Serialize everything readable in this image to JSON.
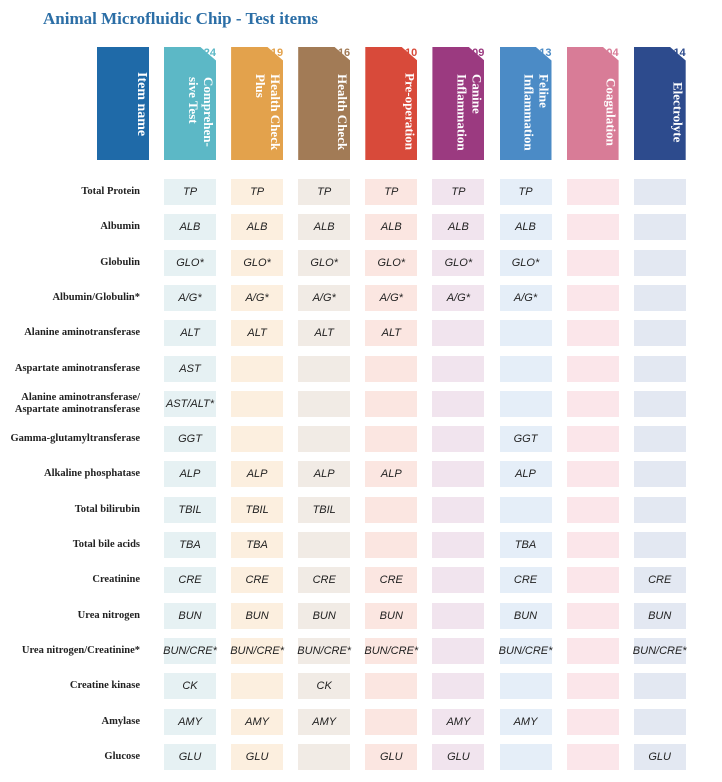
{
  "header": {
    "title": "Animal Microfluidic Chip -  Test items",
    "item_column": "Item name"
  },
  "columns": [
    {
      "number": "24",
      "name": "Comprehen-\nsive Test"
    },
    {
      "number": "19",
      "name": "Health Check\nPlus"
    },
    {
      "number": "16",
      "name": "Health Check"
    },
    {
      "number": "10",
      "name": "Pre-operation"
    },
    {
      "number": "09",
      "name": "Canine\nInflammation"
    },
    {
      "number": "13",
      "name": "Feline\nInflammation"
    },
    {
      "number": "04",
      "name": "Coagulation"
    },
    {
      "number": "14",
      "name": "Electrolyte"
    }
  ],
  "rows": [
    {
      "label": "Total Protein",
      "cells": [
        "TP",
        "TP",
        "TP",
        "TP",
        "TP",
        "TP",
        null,
        null
      ]
    },
    {
      "label": "Albumin",
      "cells": [
        "ALB",
        "ALB",
        "ALB",
        "ALB",
        "ALB",
        "ALB",
        null,
        null
      ]
    },
    {
      "label": "Globulin",
      "cells": [
        "GLO*",
        "GLO*",
        "GLO*",
        "GLO*",
        "GLO*",
        "GLO*",
        null,
        null
      ]
    },
    {
      "label": "Albumin/Globulin*",
      "cells": [
        "A/G*",
        "A/G*",
        "A/G*",
        "A/G*",
        "A/G*",
        "A/G*",
        null,
        null
      ]
    },
    {
      "label": "Alanine aminotransferase",
      "cells": [
        "ALT",
        "ALT",
        "ALT",
        "ALT",
        null,
        null,
        null,
        null
      ]
    },
    {
      "label": "Aspartate aminotransferase",
      "cells": [
        "AST",
        null,
        null,
        null,
        null,
        null,
        null,
        null
      ]
    },
    {
      "label": "Alanine aminotransferase/\nAspartate aminotransferase",
      "cells": [
        "AST/ALT*",
        null,
        null,
        null,
        null,
        null,
        null,
        null
      ]
    },
    {
      "label": "Gamma-glutamyltransferase",
      "cells": [
        "GGT",
        null,
        null,
        null,
        null,
        "GGT",
        null,
        null
      ]
    },
    {
      "label": "Alkaline phosphatase",
      "cells": [
        "ALP",
        "ALP",
        "ALP",
        "ALP",
        null,
        "ALP",
        null,
        null
      ]
    },
    {
      "label": "Total bilirubin",
      "cells": [
        "TBIL",
        "TBIL",
        "TBIL",
        null,
        null,
        null,
        null,
        null
      ]
    },
    {
      "label": "Total bile acids",
      "cells": [
        "TBA",
        "TBA",
        null,
        null,
        null,
        "TBA",
        null,
        null
      ]
    },
    {
      "label": "Creatinine",
      "cells": [
        "CRE",
        "CRE",
        "CRE",
        "CRE",
        null,
        "CRE",
        null,
        "CRE"
      ]
    },
    {
      "label": "Urea nitrogen",
      "cells": [
        "BUN",
        "BUN",
        "BUN",
        "BUN",
        null,
        "BUN",
        null,
        "BUN"
      ]
    },
    {
      "label": "Urea nitrogen/Creatinine*",
      "cells": [
        "BUN/CRE*",
        "BUN/CRE*",
        "BUN/CRE*",
        "BUN/CRE*",
        null,
        "BUN/CRE*",
        null,
        "BUN/CRE*"
      ]
    },
    {
      "label": "Creatine kinase",
      "cells": [
        "CK",
        null,
        "CK",
        null,
        null,
        null,
        null,
        null
      ]
    },
    {
      "label": "Amylase",
      "cells": [
        "AMY",
        "AMY",
        "AMY",
        null,
        "AMY",
        "AMY",
        null,
        null
      ]
    },
    {
      "label": "Glucose",
      "cells": [
        "GLU",
        "GLU",
        null,
        "GLU",
        "GLU",
        null,
        null,
        "GLU"
      ]
    }
  ]
}
